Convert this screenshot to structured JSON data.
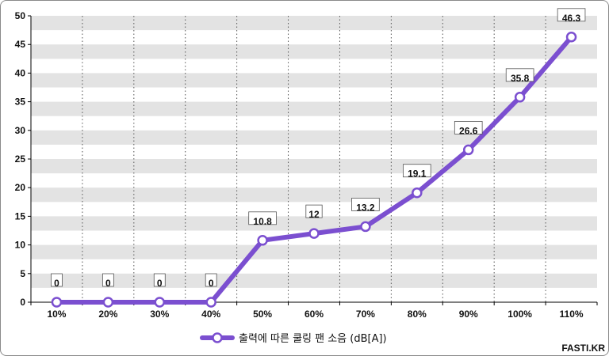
{
  "chart_data": {
    "type": "line",
    "categories": [
      "10%",
      "20%",
      "30%",
      "40%",
      "50%",
      "60%",
      "70%",
      "80%",
      "90%",
      "100%",
      "110%"
    ],
    "series": [
      {
        "name": "출력에 따른 쿨링 팬 소음 (dB[A])",
        "values": [
          0,
          0,
          0,
          0,
          10.8,
          12,
          13.2,
          19.1,
          26.6,
          35.8,
          46.3
        ],
        "color": "#7b4fd0"
      }
    ],
    "data_labels": [
      "0",
      "0",
      "0",
      "0",
      "10.8",
      "12",
      "13.2",
      "19.1",
      "26.6",
      "35.8",
      "46.3"
    ],
    "y_ticks": [
      "0",
      "5",
      "10",
      "15",
      "20",
      "25",
      "30",
      "35",
      "40",
      "45",
      "50"
    ],
    "ylim": [
      0,
      50
    ],
    "grid": true,
    "legend_position": "bottom-center"
  },
  "watermark": "FASTI.KR",
  "colors": {
    "line": "#7b4fd0",
    "band": "#e3e3e3",
    "marker_fill": "#ffffff"
  }
}
